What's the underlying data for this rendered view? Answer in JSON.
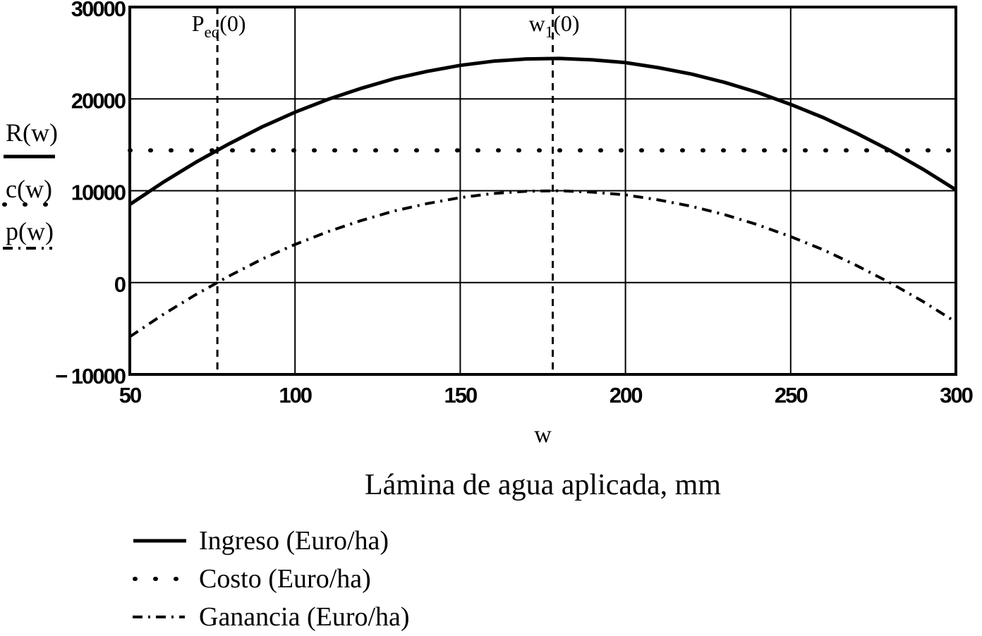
{
  "figure": {
    "background": "#ffffff",
    "ink": "#000000"
  },
  "trace_labels": [
    {
      "text": "R(w)",
      "style": "solid"
    },
    {
      "text": "c(w)",
      "style": "dotted"
    },
    {
      "text": "p(w)",
      "style": "dashdot"
    }
  ],
  "chart_data": {
    "type": "line",
    "title": "",
    "xlabel": "w",
    "caption": "Lámina de agua aplicada, mm",
    "xlim": [
      50,
      300
    ],
    "ylim": [
      -10000,
      30000
    ],
    "xticks": [
      50,
      100,
      150,
      200,
      250,
      300
    ],
    "xtick_labels": [
      "50",
      "100",
      "150",
      "200",
      "250",
      "300"
    ],
    "yticks": [
      30000,
      20000,
      10000,
      0,
      -10000
    ],
    "ytick_labels": [
      "30000",
      "20000",
      "10000",
      "0",
      "− 10000"
    ],
    "grid": true,
    "legend_position": "bottom-left",
    "x": [
      50,
      60,
      70,
      80,
      90,
      100,
      110,
      120,
      130,
      140,
      150,
      160,
      170,
      180,
      190,
      200,
      210,
      220,
      230,
      240,
      250,
      260,
      270,
      280,
      290,
      300
    ],
    "series": [
      {
        "name": "Ingreso (Euro/ha)",
        "trace": "R(w)",
        "style": "solid",
        "values": [
          8500,
          10900,
          13100,
          15100,
          16950,
          18550,
          19950,
          21150,
          22200,
          23000,
          23650,
          24100,
          24350,
          24400,
          24250,
          23950,
          23400,
          22700,
          21800,
          20700,
          19400,
          17950,
          16250,
          14400,
          12350,
          10100
        ]
      },
      {
        "name": "Costo (Euro/ha)",
        "trace": "c(w)",
        "style": "dotted",
        "values": [
          14400,
          14400,
          14400,
          14400,
          14400,
          14400,
          14400,
          14400,
          14400,
          14400,
          14400,
          14400,
          14400,
          14400,
          14400,
          14400,
          14400,
          14400,
          14400,
          14400,
          14400,
          14400,
          14400,
          14400,
          14400,
          14400
        ]
      },
      {
        "name": "Ganancia (Euro/ha)",
        "trace": "p(w)",
        "style": "dashdot",
        "values": [
          -5900,
          -3500,
          -1300,
          700,
          2550,
          4150,
          5550,
          6750,
          7800,
          8600,
          9250,
          9700,
          9950,
          10000,
          9850,
          9550,
          9000,
          8300,
          7400,
          6300,
          5000,
          3550,
          1850,
          0,
          -2050,
          -4300
        ]
      }
    ],
    "annotations": [
      {
        "base": "P",
        "sub": "eq",
        "rest": "(0)",
        "x": 76.5
      },
      {
        "base": "w",
        "sub": "1",
        "rest": "(0)",
        "x": 178
      }
    ]
  }
}
